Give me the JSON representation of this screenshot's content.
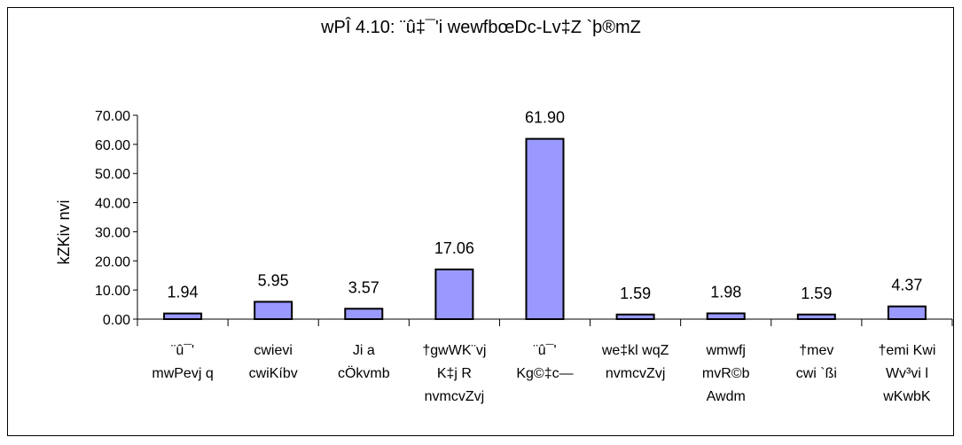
{
  "chart_data": {
    "type": "bar",
    "title": "wPÎ 4.10: ¨û‡¯'i wewfbœDc-Lv‡Z `þ®mZ",
    "ylabel": "kZKiv nvi",
    "xlabel": "",
    "ylim": [
      0,
      70
    ],
    "yticks": [
      "0.00",
      "10.00",
      "20.00",
      "30.00",
      "40.00",
      "50.00",
      "60.00",
      "70.00"
    ],
    "categories": [
      [
        "¨û¯'",
        "mwPevj q"
      ],
      [
        "cwievi",
        "cwiKíbv"
      ],
      [
        "Ji a",
        "cÖkvmb"
      ],
      [
        "†gwWK¨vj",
        "K‡j R",
        "nvmcvZvj"
      ],
      [
        "¨û¯'",
        "Kg©‡c—"
      ],
      [
        "we‡kl wqZ",
        "nvmcvZvj"
      ],
      [
        "wmwfj",
        "mvR©b",
        "Awdm"
      ],
      [
        "†mev",
        "cwi `ßi"
      ],
      [
        "†emi Kwi",
        "Wv³vi l",
        "wKwbK"
      ]
    ],
    "values": [
      1.94,
      5.95,
      3.57,
      17.06,
      61.9,
      1.59,
      1.98,
      1.59,
      4.37
    ],
    "data_labels": [
      "1.94",
      "5.95",
      "3.57",
      "17.06",
      "61.90",
      "1.59",
      "1.98",
      "1.59",
      "4.37"
    ],
    "bar_color": "#9999ff",
    "grid": false,
    "legend": "none"
  }
}
